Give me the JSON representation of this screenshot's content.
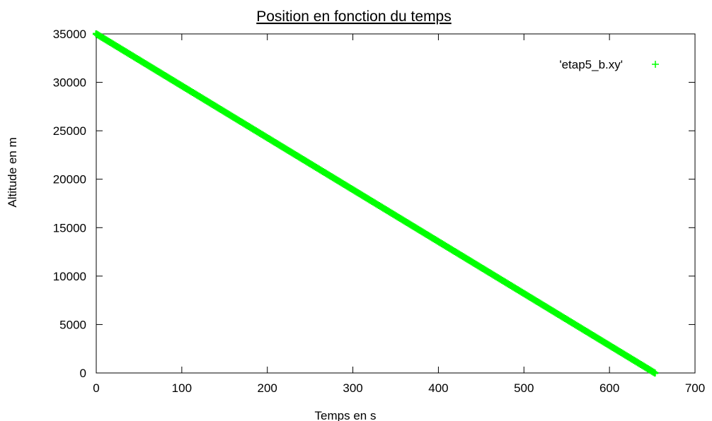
{
  "chart_data": {
    "type": "scatter",
    "title": "Position en fonction du temps",
    "xlabel": "Temps en s",
    "ylabel": "Altitude en m",
    "xlim": [
      0,
      700
    ],
    "ylim": [
      0,
      35000
    ],
    "xticks": [
      0,
      100,
      200,
      300,
      400,
      500,
      600,
      700
    ],
    "yticks": [
      0,
      5000,
      10000,
      15000,
      20000,
      25000,
      30000,
      35000
    ],
    "grid": false,
    "legend_position": "top-right",
    "series": [
      {
        "name": "'etap5_b.xy'",
        "color": "#00ff00",
        "marker": "plus",
        "x_start": 0,
        "y_start": 35000,
        "x_end": 653,
        "y_end": 0,
        "point_count": 400
      }
    ]
  }
}
